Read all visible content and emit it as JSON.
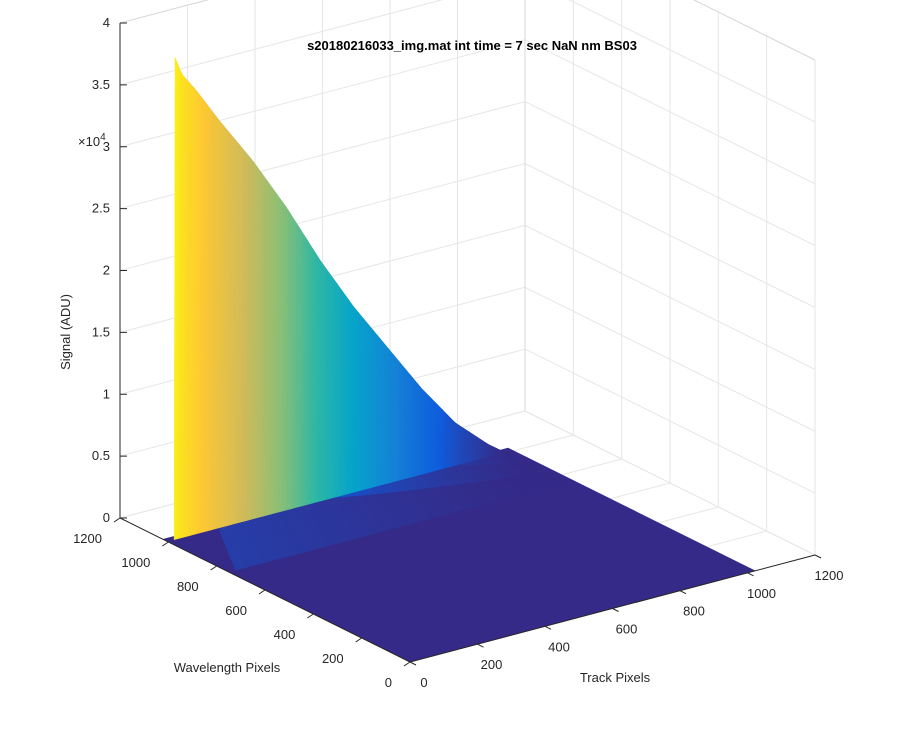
{
  "chart_data": {
    "type": "surface3d",
    "title": "s20180216033_img.mat int time = 7 sec  NaN nm BS03",
    "xlabel": "Track Pixels",
    "ylabel": "Wavelength Pixels",
    "zlabel": "Signal (ADU)",
    "zscale_label": "×10",
    "zscale_exponent": "4",
    "xlim": [
      0,
      1200
    ],
    "ylim": [
      0,
      1200
    ],
    "zlim": [
      0,
      40000
    ],
    "xticks": [
      "0",
      "200",
      "400",
      "600",
      "800",
      "1000",
      "1200"
    ],
    "yticks": [
      "0",
      "200",
      "400",
      "600",
      "800",
      "1000",
      "1200"
    ],
    "zticks": [
      "0",
      "0.5",
      "1",
      "1.5",
      "2",
      "2.5",
      "3",
      "3.5",
      "4"
    ],
    "grid": true,
    "colormap": "parula",
    "colormap_stops": [
      "#352a87",
      "#0f5cdd",
      "#1481d6",
      "#06a4ca",
      "#2eb7a4",
      "#87bf77",
      "#d1bb59",
      "#fec832",
      "#f9fb0e"
    ],
    "surface": {
      "x_range": [
        0,
        1024
      ],
      "y_range": [
        0,
        1024
      ],
      "baseline": 0,
      "ridge_y": 1000,
      "ridge_x_range": [
        20,
        1000
      ],
      "ridge_profile": {
        "x": [
          20,
          40,
          80,
          150,
          250,
          350,
          450,
          550,
          650,
          750,
          850,
          950,
          1000
        ],
        "z": [
          39000,
          37500,
          36000,
          33000,
          29000,
          24500,
          19500,
          15000,
          11000,
          7000,
          3500,
          1000,
          0
        ]
      },
      "decay_profile": {
        "y_offset": [
          0,
          5,
          15,
          40,
          80,
          150,
          250
        ],
        "factor": [
          1.0,
          0.88,
          0.62,
          0.42,
          0.25,
          0.1,
          0.0
        ]
      }
    }
  }
}
